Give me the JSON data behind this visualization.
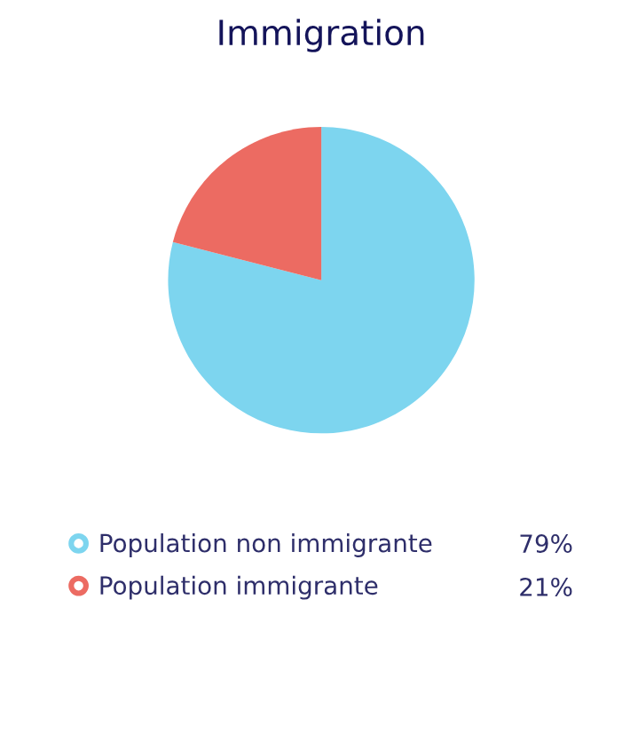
{
  "chart_data": {
    "type": "pie",
    "title": "Immigration",
    "categories": [
      "Population non immigrante",
      "Population immigrante"
    ],
    "values": [
      79,
      21
    ],
    "colors": [
      "#7dd5ef",
      "#ec6b62"
    ],
    "value_labels": [
      "79%",
      "21%"
    ],
    "legend": "bottom"
  }
}
